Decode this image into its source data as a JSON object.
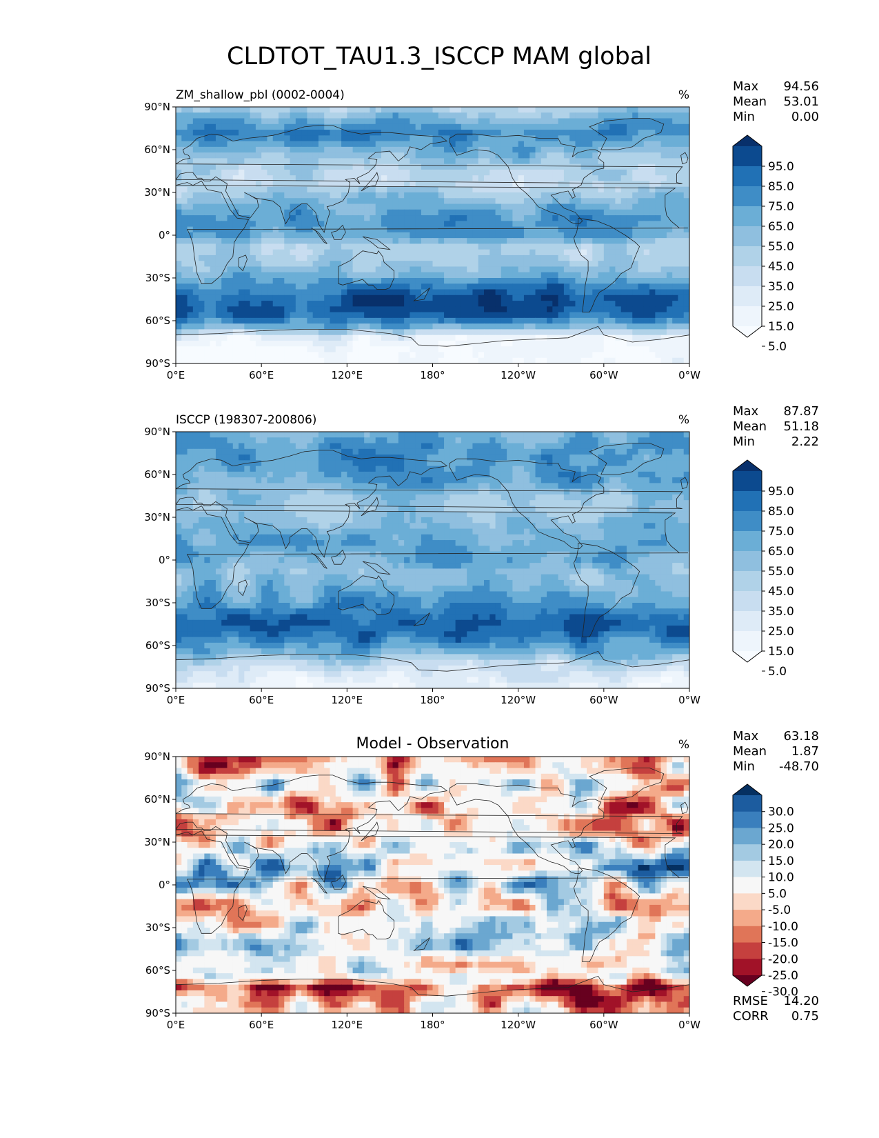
{
  "figure_title": "CLDTOT_TAU1.3_ISCCP MAM global",
  "chart_data": [
    {
      "type": "heatmap",
      "panel": "test",
      "title": "ZM_shallow_pbl (0002-0004)",
      "units": "%",
      "stats": [
        {
          "label": "Max",
          "value": "94.56"
        },
        {
          "label": "Mean",
          "value": "53.01"
        },
        {
          "label": "Min",
          "value": "0.00"
        }
      ],
      "extra_stats": [],
      "colorbar": {
        "levels": [
          "95.0",
          "85.0",
          "75.0",
          "65.0",
          "55.0",
          "45.0",
          "35.0",
          "25.0",
          "15.0",
          "5.0"
        ],
        "colors": [
          "#08306b",
          "#0c4a8f",
          "#2171b5",
          "#3f8dc6",
          "#6baed6",
          "#8fbfdf",
          "#b0d2e8",
          "#c8ddf0",
          "#deebf7",
          "#eef5fc",
          "#f7fbff"
        ]
      },
      "ylim": [
        -90,
        90
      ],
      "xlim": [
        0,
        360
      ],
      "x_ticks": [
        "0°E",
        "60°E",
        "120°E",
        "180°",
        "120°W",
        "60°W",
        "0°W"
      ],
      "y_ticks": [
        "90°N",
        "60°N",
        "30°N",
        "0°",
        "30°S",
        "60°S",
        "90°S"
      ],
      "zonal_profile_values": [
        40,
        60,
        70,
        62,
        48,
        38,
        35,
        50,
        60,
        68,
        62,
        38,
        45,
        55,
        75,
        90,
        85,
        65,
        15,
        5,
        3
      ]
    },
    {
      "type": "heatmap",
      "panel": "reference",
      "title": "ISCCP (198307-200806)",
      "units": "%",
      "stats": [
        {
          "label": "Max",
          "value": "87.87"
        },
        {
          "label": "Mean",
          "value": "51.18"
        },
        {
          "label": "Min",
          "value": "2.22"
        }
      ],
      "extra_stats": [],
      "colorbar": {
        "levels": [
          "95.0",
          "85.0",
          "75.0",
          "65.0",
          "55.0",
          "45.0",
          "35.0",
          "25.0",
          "15.0",
          "5.0"
        ],
        "colors": [
          "#08306b",
          "#0c4a8f",
          "#2171b5",
          "#3f8dc6",
          "#6baed6",
          "#8fbfdf",
          "#b0d2e8",
          "#c8ddf0",
          "#deebf7",
          "#eef5fc",
          "#f7fbff"
        ]
      },
      "ylim": [
        -90,
        90
      ],
      "xlim": [
        0,
        360
      ],
      "x_ticks": [
        "0°E",
        "60°E",
        "120°E",
        "180°",
        "120°W",
        "60°W",
        "0°W"
      ],
      "y_ticks": [
        "90°N",
        "60°N",
        "30°N",
        "0°",
        "30°S",
        "60°S",
        "90°S"
      ],
      "zonal_profile_values": [
        55,
        65,
        70,
        66,
        60,
        50,
        45,
        50,
        58,
        62,
        60,
        50,
        55,
        62,
        72,
        82,
        80,
        62,
        35,
        20,
        12
      ]
    },
    {
      "type": "heatmap",
      "panel": "difference",
      "title": "Model - Observation",
      "units": "%",
      "stats": [
        {
          "label": "Max",
          "value": "63.18"
        },
        {
          "label": "Mean",
          "value": "1.87"
        },
        {
          "label": "Min",
          "value": "-48.70"
        }
      ],
      "extra_stats": [
        {
          "label": "RMSE",
          "value": "14.20"
        },
        {
          "label": "CORR",
          "value": "0.75"
        }
      ],
      "colorbar": {
        "levels": [
          "30.0",
          "25.0",
          "20.0",
          "15.0",
          "10.0",
          "5.0",
          "-5.0",
          "-10.0",
          "-15.0",
          "-20.0",
          "-25.0",
          "-30.0"
        ],
        "colors": [
          "#053061",
          "#1c5c9f",
          "#3a7fbd",
          "#6ba7d0",
          "#a3cae2",
          "#d3e5f0",
          "#f7f7f7",
          "#fbd9c7",
          "#f4aa8a",
          "#e07558",
          "#c5403e",
          "#a11228",
          "#67001f"
        ]
      },
      "ylim": [
        -90,
        90
      ],
      "xlim": [
        0,
        360
      ],
      "x_ticks": [
        "0°E",
        "60°E",
        "120°E",
        "180°",
        "120°W",
        "60°W",
        "0°W"
      ],
      "y_ticks": [
        "90°N",
        "60°N",
        "30°N",
        "0°",
        "30°S",
        "60°S",
        "90°S"
      ],
      "zonal_profile_values": [
        -15,
        -8,
        2,
        -4,
        -10,
        -12,
        -10,
        2,
        6,
        10,
        4,
        -2,
        -3,
        -2,
        3,
        6,
        5,
        8,
        -20,
        -15,
        -8
      ]
    }
  ]
}
